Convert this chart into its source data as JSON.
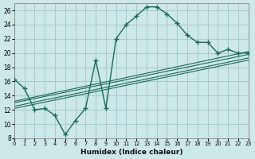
{
  "xlabel": "Humidex (Indice chaleur)",
  "bg_color": "#cce8e8",
  "grid_color": "#aacccc",
  "line_color": "#1a6b5a",
  "main_curve": {
    "x": [
      0,
      1,
      2,
      3,
      4,
      5,
      6,
      7,
      8,
      9,
      10,
      11,
      12,
      13,
      14,
      15,
      16,
      17,
      18,
      19,
      20,
      21,
      22,
      23
    ],
    "y": [
      16.3,
      15.0,
      12.0,
      12.2,
      11.2,
      8.5,
      10.5,
      12.2,
      19.0,
      12.2,
      22.0,
      24.0,
      25.2,
      26.5,
      26.5,
      25.5,
      24.2,
      22.5,
      21.5,
      21.5,
      20.0,
      20.5,
      20.0,
      20.0
    ]
  },
  "linear_lines": [
    {
      "x": [
        0,
        23
      ],
      "y": [
        13.2,
        20.2
      ]
    },
    {
      "x": [
        0,
        23
      ],
      "y": [
        13.0,
        19.8
      ]
    },
    {
      "x": [
        0,
        23
      ],
      "y": [
        12.5,
        19.3
      ]
    },
    {
      "x": [
        0,
        23
      ],
      "y": [
        12.2,
        19.0
      ]
    }
  ],
  "ylim": [
    8,
    27
  ],
  "xlim": [
    0,
    23
  ],
  "yticks": [
    8,
    10,
    12,
    14,
    16,
    18,
    20,
    22,
    24,
    26
  ],
  "xticks": [
    0,
    1,
    2,
    3,
    4,
    5,
    6,
    7,
    8,
    9,
    10,
    11,
    12,
    13,
    14,
    15,
    16,
    17,
    18,
    19,
    20,
    21,
    22,
    23
  ]
}
